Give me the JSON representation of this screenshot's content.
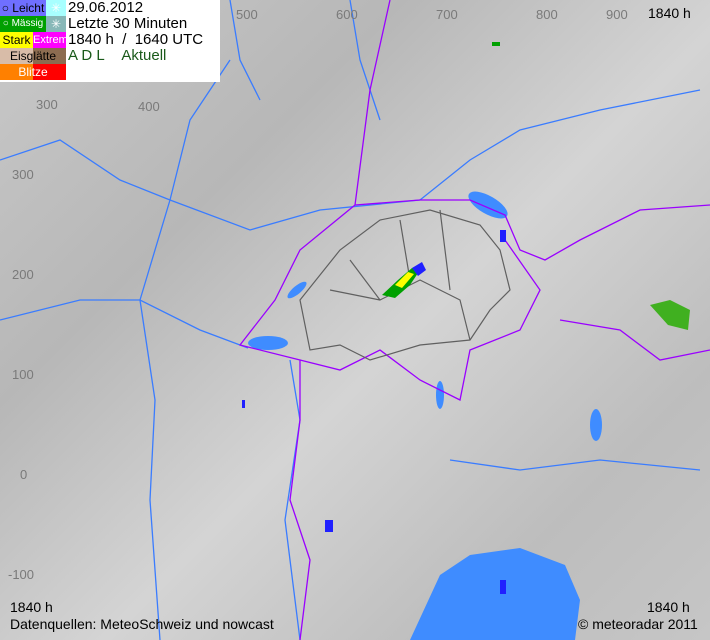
{
  "legend": {
    "leicht": "Leicht",
    "massig": "Mässig",
    "stark": "Stark",
    "extrem": "Extrem",
    "eisglaette": "Eisglätte",
    "blitze": "Blitze",
    "colors": {
      "leicht": "#6f6fff",
      "snow_leicht": "#a8ffff",
      "massig": "#00a000",
      "snow_massig": "#88b8b8",
      "stark": "#ffff00",
      "extrem": "#ff00ff",
      "eis1": "#d8bca8",
      "eis2": "#8c6c50",
      "blitz1": "#ff8000",
      "blitz2": "#ff0000"
    },
    "icons": [
      "circle-icon",
      "snowflake-icon"
    ]
  },
  "info": {
    "date": "29.06.2012",
    "period": "Letzte 30 Minuten",
    "time": "1840 h  /  1640 UTC",
    "mode_a": "A D L",
    "mode_b": "Aktuell"
  },
  "time_top_right": "1840 h",
  "coords": {
    "top": [
      "500",
      "600",
      "700",
      "800",
      "900"
    ],
    "inner": [
      "300",
      "400"
    ],
    "left": [
      "300",
      "200",
      "100",
      "0",
      "-100"
    ]
  },
  "footer": {
    "time_left": "1840 h",
    "sources": "Datenquellen: MeteoSchweiz und nowcast",
    "time_right": "1840 h",
    "copyright": "© meteoradar 2011"
  }
}
